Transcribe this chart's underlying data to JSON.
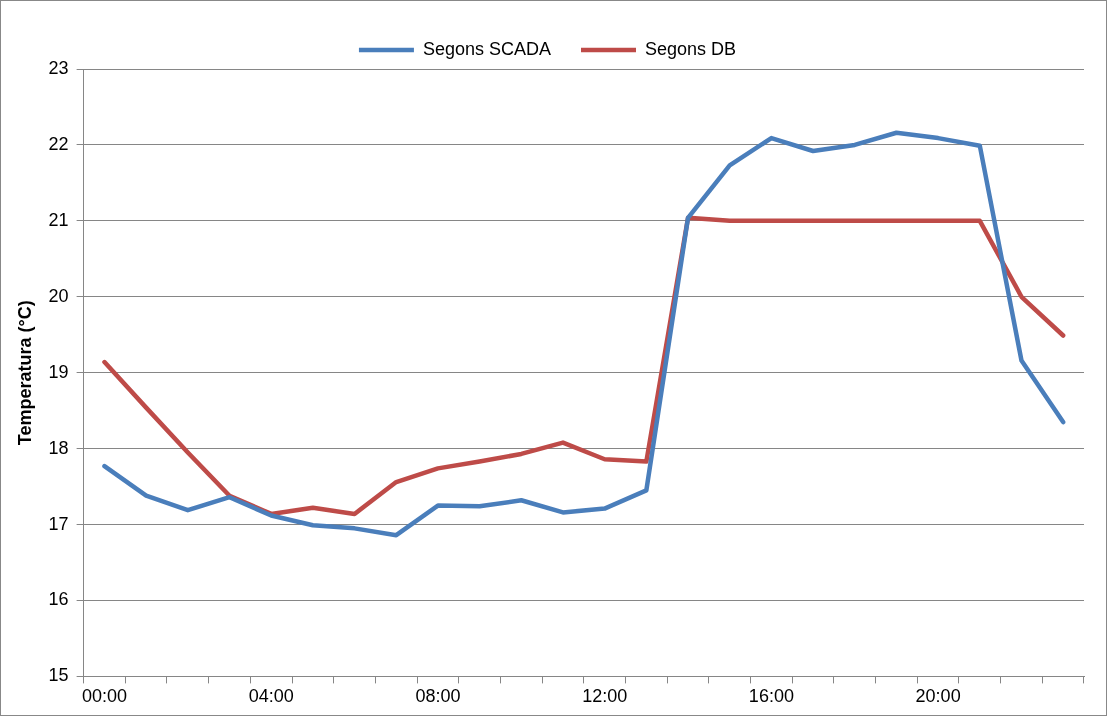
{
  "chart_data": {
    "type": "line",
    "ylabel": "Temperatura (°C)",
    "categories": [
      "00:00",
      null,
      null,
      null,
      "04:00",
      null,
      null,
      null,
      "08:00",
      null,
      null,
      null,
      "12:00",
      null,
      null,
      null,
      "16:00",
      null,
      null,
      null,
      "20:00",
      null,
      null,
      null
    ],
    "series": [
      {
        "name": "Segons SCADA",
        "color": "#4a7ebb",
        "values": [
          17.77,
          17.38,
          17.19,
          17.36,
          17.12,
          16.99,
          16.95,
          16.86,
          17.25,
          17.24,
          17.32,
          17.16,
          17.21,
          17.45,
          21.04,
          21.73,
          22.09,
          21.92,
          22.0,
          22.16,
          22.09,
          21.99,
          19.16,
          18.35
        ]
      },
      {
        "name": "Segons DB",
        "color": "#be4b48",
        "values": [
          19.14,
          18.54,
          17.95,
          17.38,
          17.14,
          17.22,
          17.14,
          17.56,
          17.74,
          17.83,
          17.93,
          18.08,
          17.86,
          17.83,
          21.04,
          21.0,
          21.0,
          21.0,
          21.0,
          21.0,
          21.0,
          21.0,
          20.0,
          19.49
        ]
      }
    ],
    "ylim": [
      15,
      23
    ],
    "yticks": [
      15,
      16,
      17,
      18,
      19,
      20,
      21,
      22,
      23
    ],
    "grid": "y",
    "legend": "top",
    "marker": "none",
    "line_style": "solid"
  }
}
